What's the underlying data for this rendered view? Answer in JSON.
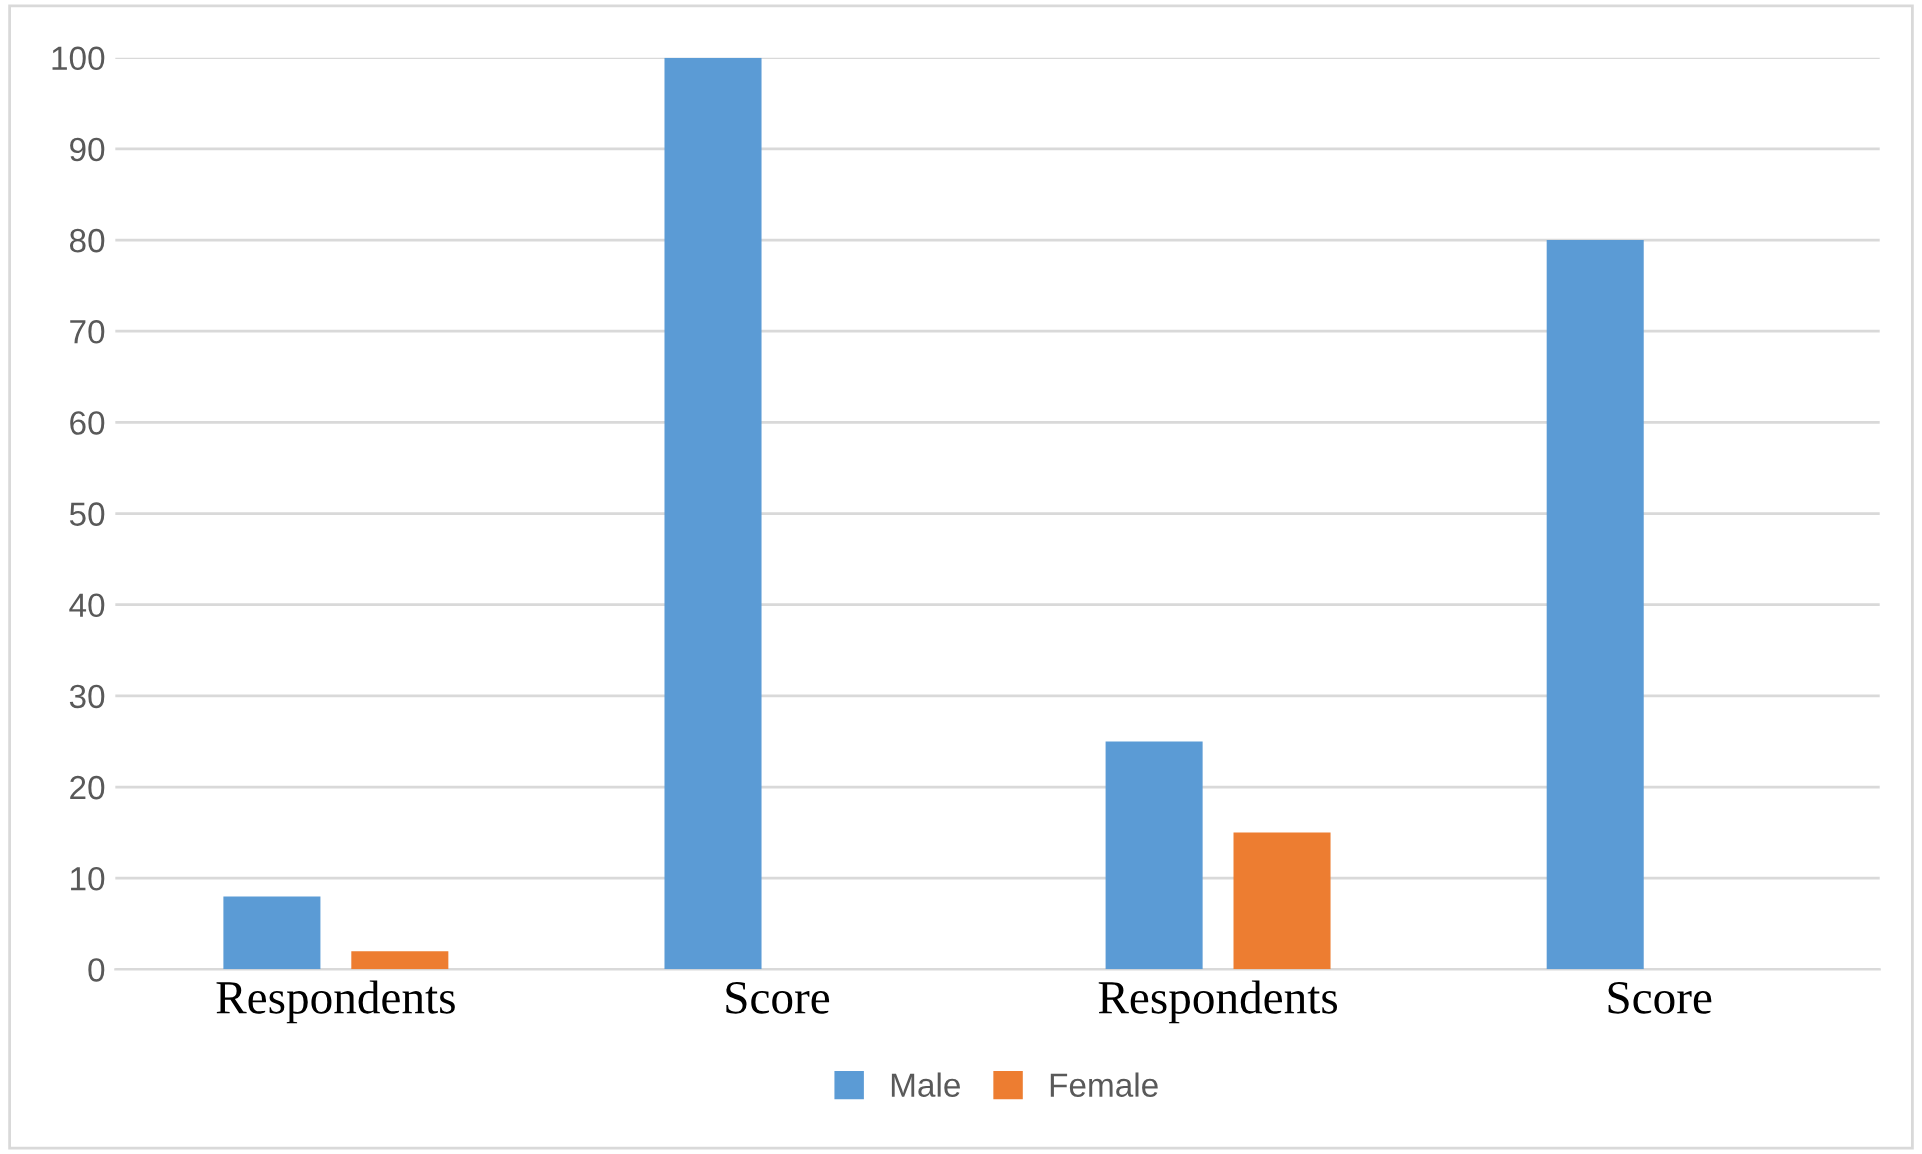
{
  "chart_data": {
    "type": "bar",
    "categories": [
      "Respondents",
      "Score",
      "Respondents",
      "Score"
    ],
    "series": [
      {
        "name": "Male",
        "color": "#5b9bd5",
        "values": [
          8,
          100,
          25,
          80
        ]
      },
      {
        "name": "Female",
        "color": "#ed7d31",
        "values": [
          2,
          null,
          15,
          null
        ]
      }
    ],
    "ylim": [
      0,
      100
    ],
    "yticks": [
      0,
      10,
      20,
      30,
      40,
      50,
      60,
      70,
      80,
      90,
      100
    ],
    "grid": "y",
    "legend": "bottom"
  }
}
